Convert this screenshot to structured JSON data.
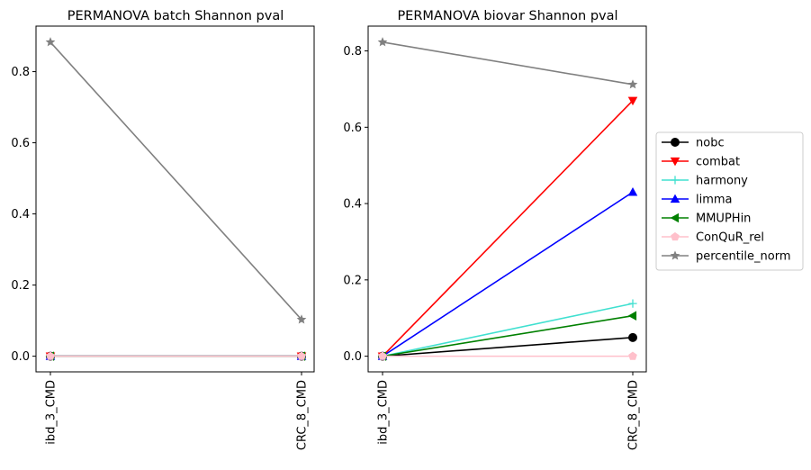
{
  "chart_data": [
    {
      "type": "line",
      "title": "PERMANOVA batch Shannon pval",
      "xlabel": "",
      "ylabel": "",
      "categories": [
        "ibd_3_CMD",
        "CRC_8_CMD"
      ],
      "ylim": [
        -0.044,
        0.928
      ],
      "yticks": [
        "0.0",
        "0.2",
        "0.4",
        "0.6",
        "0.8"
      ],
      "ytick_values": [
        0,
        0.2,
        0.4,
        0.6,
        0.8
      ],
      "grid": false,
      "series": [
        {
          "name": "nobc",
          "values": [
            0.0,
            0.0
          ],
          "color": "#000000",
          "marker": "circle"
        },
        {
          "name": "combat",
          "values": [
            0.0,
            0.0
          ],
          "color": "#ff0000",
          "marker": "triangle-down"
        },
        {
          "name": "harmony",
          "values": [
            0.0,
            0.0
          ],
          "color": "#40e0d0",
          "marker": "plus"
        },
        {
          "name": "limma",
          "values": [
            0.0,
            0.0
          ],
          "color": "#0000ff",
          "marker": "triangle-up"
        },
        {
          "name": "MMUPHin",
          "values": [
            0.0,
            0.0
          ],
          "color": "#008000",
          "marker": "triangle-left"
        },
        {
          "name": "ConQuR_rel",
          "values": [
            0.0,
            0.0
          ],
          "color": "#ffc0cb",
          "marker": "pentagon"
        },
        {
          "name": "percentile_norm",
          "values": [
            0.883,
            0.103
          ],
          "color": "#808080",
          "marker": "star"
        }
      ]
    },
    {
      "type": "line",
      "title": "PERMANOVA biovar Shannon pval",
      "xlabel": "",
      "ylabel": "",
      "categories": [
        "ibd_3_CMD",
        "CRC_8_CMD"
      ],
      "ylim": [
        -0.041,
        0.865
      ],
      "yticks": [
        "0.0",
        "0.2",
        "0.4",
        "0.6",
        "0.8"
      ],
      "ytick_values": [
        0,
        0.2,
        0.4,
        0.6,
        0.8
      ],
      "grid": false,
      "legend_position": "right-outside",
      "series": [
        {
          "name": "nobc",
          "values": [
            0.0,
            0.049
          ],
          "color": "#000000",
          "marker": "circle"
        },
        {
          "name": "combat",
          "values": [
            0.0,
            0.67
          ],
          "color": "#ff0000",
          "marker": "triangle-down"
        },
        {
          "name": "harmony",
          "values": [
            0.0,
            0.138
          ],
          "color": "#40e0d0",
          "marker": "plus"
        },
        {
          "name": "limma",
          "values": [
            0.0,
            0.43
          ],
          "color": "#0000ff",
          "marker": "triangle-up"
        },
        {
          "name": "MMUPHin",
          "values": [
            0.0,
            0.106
          ],
          "color": "#008000",
          "marker": "triangle-left"
        },
        {
          "name": "ConQuR_rel",
          "values": [
            0.0,
            0.0
          ],
          "color": "#ffc0cb",
          "marker": "pentagon"
        },
        {
          "name": "percentile_norm",
          "values": [
            0.823,
            0.712
          ],
          "color": "#808080",
          "marker": "star"
        }
      ]
    }
  ]
}
